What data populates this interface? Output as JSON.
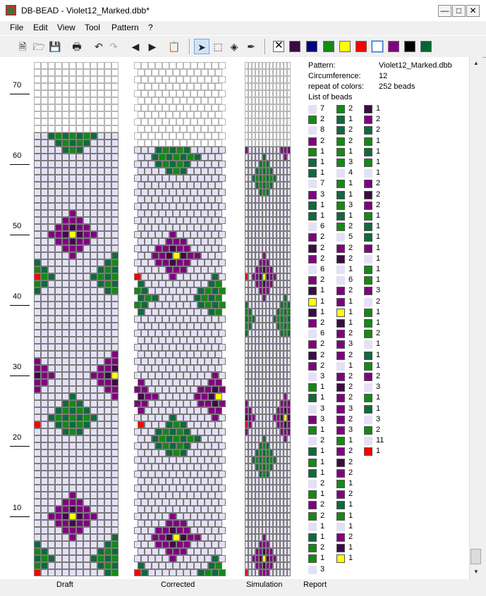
{
  "window": {
    "title": "DB-BEAD - Violet12_Marked.dbb*"
  },
  "menu": [
    {
      "label": "File"
    },
    {
      "label": "Edit"
    },
    {
      "label": "View"
    },
    {
      "label": "Tool"
    },
    {
      "label": "Pattern"
    },
    {
      "label": "?"
    }
  ],
  "toolbar": {
    "icons": [
      "new-file-icon",
      "open-folder-icon",
      "save-icon",
      "print-icon",
      "undo-icon",
      "redo-icon",
      "arrow-left-icon",
      "arrow-right-icon",
      "paste-icon",
      "pointer-icon",
      "select-rect-icon",
      "fill-icon",
      "eyedropper-icon"
    ],
    "palette": [
      "#ffffff",
      "#3a0a40",
      "#000080",
      "#138a13",
      "#ffff00",
      "#ff0000",
      "#ffffff",
      "#800080",
      "#000000",
      "#006633"
    ]
  },
  "ruler": {
    "labels": [
      "70",
      "60",
      "50",
      "40",
      "30",
      "20",
      "10"
    ]
  },
  "columns": {
    "draft": "Draft",
    "corrected": "Corrected",
    "simulation": "Simulation",
    "report": "Report"
  },
  "colors": {
    "bg": "#e4e0f6",
    "violet": "#800080",
    "dark": "#3c0c44",
    "green": "#138a13",
    "teal": "#0f6a3c",
    "yellow": "#ffff00",
    "red": "#ff0000",
    "empty": "#ffffff"
  },
  "report": {
    "pattern_label": "Pattern:",
    "pattern_value": "Violet12_Marked.dbb",
    "circ_label": "Circumference:",
    "circ_value": "12",
    "repeat_label": "repeat of colors:",
    "repeat_value": "252 beads",
    "list_label": "List of beads",
    "col1": [
      [
        "bg",
        "7"
      ],
      [
        "green",
        "2"
      ],
      [
        "bg",
        "8"
      ],
      [
        "violet",
        "2"
      ],
      [
        "green",
        "1"
      ],
      [
        "teal",
        "1"
      ],
      [
        "teal",
        "1"
      ],
      [
        "bg",
        "7"
      ],
      [
        "violet",
        "3"
      ],
      [
        "teal",
        "1"
      ],
      [
        "teal",
        "1"
      ],
      [
        "bg",
        "6"
      ],
      [
        "violet",
        "2"
      ],
      [
        "dark",
        "2"
      ],
      [
        "violet",
        "2"
      ],
      [
        "bg",
        "6"
      ],
      [
        "violet",
        "2"
      ],
      [
        "dark",
        "1"
      ],
      [
        "yellow",
        "1"
      ],
      [
        "dark",
        "1"
      ],
      [
        "violet",
        "2"
      ],
      [
        "bg",
        "6"
      ],
      [
        "violet",
        "2"
      ],
      [
        "dark",
        "2"
      ],
      [
        "violet",
        "2"
      ],
      [
        "bg",
        "3"
      ],
      [
        "green",
        "1"
      ],
      [
        "teal",
        "1"
      ],
      [
        "bg",
        "3"
      ],
      [
        "violet",
        "3"
      ],
      [
        "green",
        "1"
      ],
      [
        "bg",
        "2"
      ],
      [
        "teal",
        "1"
      ],
      [
        "green",
        "1"
      ],
      [
        "teal",
        "1"
      ],
      [
        "bg",
        "2"
      ],
      [
        "green",
        "1"
      ],
      [
        "violet",
        "2"
      ],
      [
        "green",
        "2"
      ],
      [
        "bg",
        "1"
      ],
      [
        "teal",
        "1"
      ],
      [
        "green",
        "2"
      ],
      [
        "green",
        "1"
      ],
      [
        "bg",
        "3"
      ]
    ],
    "col2": [
      [
        "green",
        "2"
      ],
      [
        "teal",
        "1"
      ],
      [
        "teal",
        "2"
      ],
      [
        "green",
        "2"
      ],
      [
        "green",
        "1"
      ],
      [
        "green",
        "3"
      ],
      [
        "bg",
        "4"
      ],
      [
        "green",
        "1"
      ],
      [
        "teal",
        "1"
      ],
      [
        "green",
        "3"
      ],
      [
        "teal",
        "1"
      ],
      [
        "green",
        "2"
      ],
      [
        "bg",
        "5"
      ],
      [
        "violet",
        "2"
      ],
      [
        "dark",
        "2"
      ],
      [
        "bg",
        "1"
      ],
      [
        "bg",
        "6"
      ],
      [
        "violet",
        "2"
      ],
      [
        "violet",
        "1"
      ],
      [
        "yellow",
        "1"
      ],
      [
        "dark",
        "1"
      ],
      [
        "violet",
        "2"
      ],
      [
        "violet",
        "3"
      ],
      [
        "violet",
        "2"
      ],
      [
        "bg",
        "1"
      ],
      [
        "violet",
        "2"
      ],
      [
        "dark",
        "2"
      ],
      [
        "violet",
        "2"
      ],
      [
        "violet",
        "3"
      ],
      [
        "violet",
        "2"
      ],
      [
        "violet",
        "3"
      ],
      [
        "green",
        "1"
      ],
      [
        "violet",
        "2"
      ],
      [
        "dark",
        "2"
      ],
      [
        "violet",
        "2"
      ],
      [
        "green",
        "1"
      ],
      [
        "violet",
        "2"
      ],
      [
        "teal",
        "1"
      ],
      [
        "green",
        "1"
      ],
      [
        "bg",
        "1"
      ],
      [
        "violet",
        "2"
      ],
      [
        "dark",
        "1"
      ],
      [
        "yellow",
        "1"
      ]
    ],
    "col3": [
      [
        "dark",
        "1"
      ],
      [
        "violet",
        "2"
      ],
      [
        "teal",
        "2"
      ],
      [
        "green",
        "1"
      ],
      [
        "teal",
        "1"
      ],
      [
        "green",
        "1"
      ],
      [
        "bg",
        "1"
      ],
      [
        "violet",
        "2"
      ],
      [
        "dark",
        "2"
      ],
      [
        "violet",
        "2"
      ],
      [
        "green",
        "1"
      ],
      [
        "teal",
        "1"
      ],
      [
        "teal",
        "1"
      ],
      [
        "violet",
        "1"
      ],
      [
        "bg",
        "1"
      ],
      [
        "green",
        "1"
      ],
      [
        "green",
        "1"
      ],
      [
        "violet",
        "3"
      ],
      [
        "bg",
        "2"
      ],
      [
        "green",
        "1"
      ],
      [
        "green",
        "1"
      ],
      [
        "green",
        "2"
      ],
      [
        "bg",
        "1"
      ],
      [
        "teal",
        "1"
      ],
      [
        "green",
        "1"
      ],
      [
        "violet",
        "2"
      ],
      [
        "bg",
        "3"
      ],
      [
        "green",
        "1"
      ],
      [
        "teal",
        "1"
      ],
      [
        "bg",
        "3"
      ],
      [
        "green",
        "2"
      ],
      [
        "bg",
        "11"
      ],
      [
        "red",
        "1"
      ]
    ]
  }
}
